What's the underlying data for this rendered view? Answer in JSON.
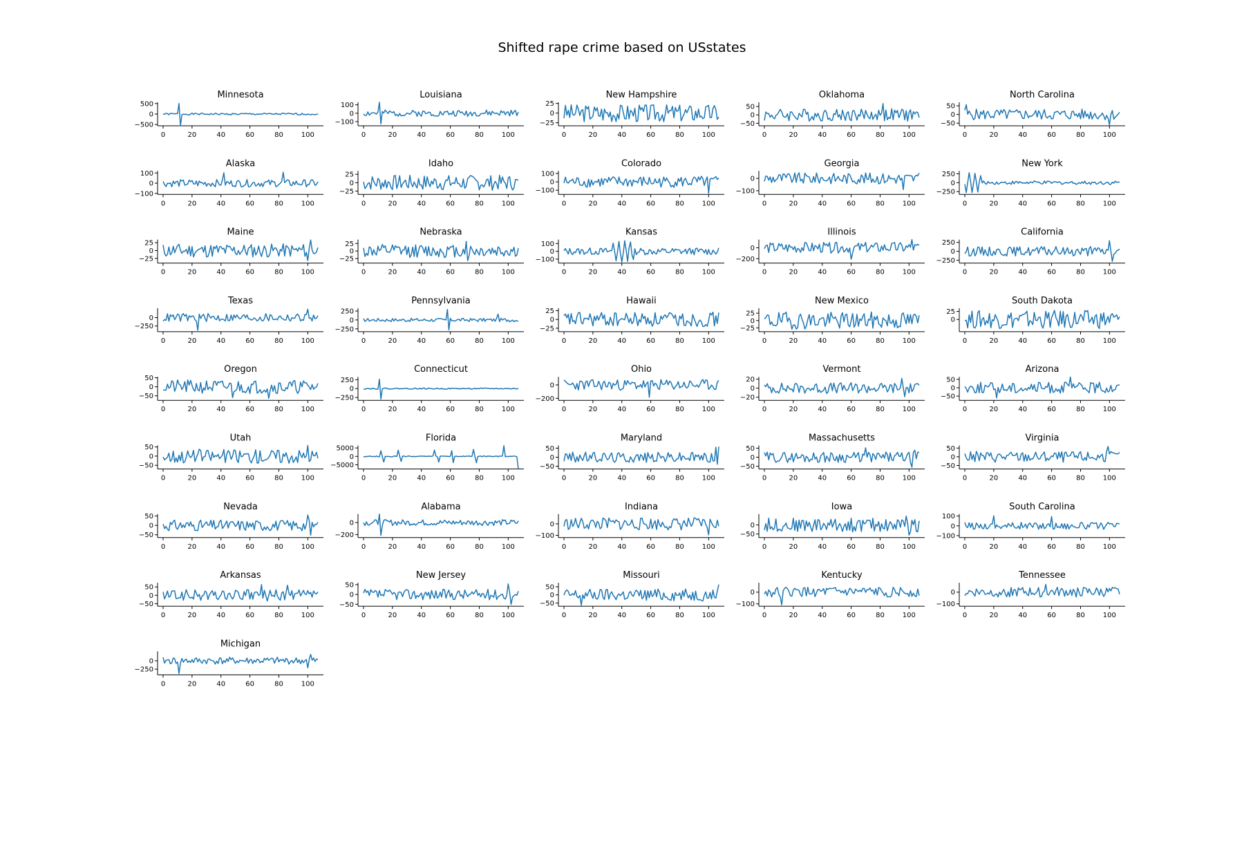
{
  "title": "Shifted rape crime based on USstates",
  "colors": {
    "line": "#1f77b4",
    "axis": "#000000",
    "background": "#ffffff"
  },
  "chart_data": {
    "type": "line",
    "layout": "small-multiples grid, 5 columns x 9 rows",
    "x_points": 108,
    "xlim": [
      0,
      107
    ],
    "xticks": [
      0,
      20,
      40,
      60,
      80,
      100
    ],
    "grid": false,
    "legend": "none",
    "panels": [
      {
        "title": "Minnesota",
        "ylim": [
          -560,
          560
        ],
        "yticks": [
          500,
          0,
          -500
        ],
        "ytick_labels": [
          "500",
          "0",
          "−500"
        ],
        "amp": 0.08,
        "seed": 1,
        "spikes": [
          [
            11,
            0.9
          ],
          [
            12,
            -1.0
          ]
        ]
      },
      {
        "title": "Louisiana",
        "ylim": [
          -150,
          130
        ],
        "yticks": [
          100,
          0,
          -100
        ],
        "ytick_labels": [
          "100",
          "0",
          "−100"
        ],
        "amp": 0.25,
        "seed": 2,
        "spikes": [
          [
            11,
            0.9
          ],
          [
            12,
            -0.85
          ]
        ]
      },
      {
        "title": "New Hampshire",
        "ylim": [
          -33,
          28
        ],
        "yticks": [
          25,
          0,
          -25
        ],
        "ytick_labels": [
          "25",
          "0",
          "−25"
        ],
        "amp": 0.7,
        "seed": 3,
        "spikes": []
      },
      {
        "title": "Oklahoma",
        "ylim": [
          -65,
          75
        ],
        "yticks": [
          50,
          0,
          -50
        ],
        "ytick_labels": [
          "50",
          "0",
          "−50"
        ],
        "amp": 0.5,
        "seed": 4,
        "spikes": [
          [
            82,
            0.9
          ]
        ]
      },
      {
        "title": "North Carolina",
        "ylim": [
          -65,
          70
        ],
        "yticks": [
          50,
          0,
          -50
        ],
        "ytick_labels": [
          "50",
          "0",
          "−50"
        ],
        "amp": 0.45,
        "seed": 5,
        "spikes": [
          [
            1,
            0.8
          ],
          [
            100,
            -0.85
          ]
        ]
      },
      {
        "title": "Alaska",
        "ylim": [
          -110,
          120
        ],
        "yticks": [
          100,
          0,
          -100
        ],
        "ytick_labels": [
          "100",
          "0",
          "−100"
        ],
        "amp": 0.3,
        "seed": 6,
        "spikes": [
          [
            42,
            0.85
          ],
          [
            83,
            0.9
          ]
        ]
      },
      {
        "title": "Idaho",
        "ylim": [
          -35,
          35
        ],
        "yticks": [
          25,
          0,
          -25
        ],
        "ytick_labels": [
          "25",
          "0",
          "−25"
        ],
        "amp": 0.65,
        "seed": 7,
        "spikes": []
      },
      {
        "title": "Colorado",
        "ylim": [
          -150,
          130
        ],
        "yticks": [
          100,
          0,
          -100
        ],
        "ytick_labels": [
          "100",
          "0",
          "−100"
        ],
        "amp": 0.45,
        "seed": 8,
        "spikes": [
          [
            100,
            -0.9
          ]
        ]
      },
      {
        "title": "Georgia",
        "ylim": [
          -130,
          60
        ],
        "yticks": [
          0,
          -100
        ],
        "ytick_labels": [
          "0",
          "−100"
        ],
        "amp": 0.35,
        "seed": 9,
        "spikes": [
          [
            96,
            -0.7
          ]
        ]
      },
      {
        "title": "New York",
        "ylim": [
          -330,
          330
        ],
        "yticks": [
          250,
          0,
          -250
        ],
        "ytick_labels": [
          "250",
          "0",
          "−250"
        ],
        "amp": 0.15,
        "seed": 10,
        "spikes": [
          [
            1,
            -0.85
          ],
          [
            3,
            0.85
          ],
          [
            5,
            -0.85
          ],
          [
            7,
            0.8
          ],
          [
            9,
            -0.8
          ],
          [
            11,
            0.6
          ]
        ]
      },
      {
        "title": "Maine",
        "ylim": [
          -40,
          35
        ],
        "yticks": [
          25,
          0,
          -25
        ],
        "ytick_labels": [
          "25",
          "0",
          "−25"
        ],
        "amp": 0.55,
        "seed": 11,
        "spikes": [
          [
            100,
            -0.8
          ],
          [
            102,
            0.85
          ]
        ]
      },
      {
        "title": "Nebraska",
        "ylim": [
          -40,
          38
        ],
        "yticks": [
          25,
          0,
          -25
        ],
        "ytick_labels": [
          "25",
          "0",
          "−25"
        ],
        "amp": 0.55,
        "seed": 12,
        "spikes": [
          [
            71,
            0.8
          ],
          [
            72,
            -0.8
          ]
        ]
      },
      {
        "title": "Kansas",
        "ylim": [
          -150,
          150
        ],
        "yticks": [
          100,
          0,
          -100
        ],
        "ytick_labels": [
          "100",
          "0",
          "−100"
        ],
        "amp": 0.3,
        "seed": 13,
        "spikes": [
          [
            34,
            0.7
          ],
          [
            36,
            -0.8
          ],
          [
            38,
            0.85
          ],
          [
            40,
            -0.9
          ],
          [
            42,
            0.9
          ],
          [
            44,
            -0.85
          ],
          [
            46,
            0.8
          ],
          [
            48,
            -0.7
          ]
        ]
      },
      {
        "title": "Illinois",
        "ylim": [
          -280,
          150
        ],
        "yticks": [
          0,
          -200
        ],
        "ytick_labels": [
          "0",
          "−200"
        ],
        "amp": 0.35,
        "seed": 14,
        "spikes": [
          [
            60,
            -0.75
          ],
          [
            102,
            0.8
          ]
        ]
      },
      {
        "title": "California",
        "ylim": [
          -330,
          330
        ],
        "yticks": [
          250,
          0,
          -250
        ],
        "ytick_labels": [
          "250",
          "0",
          "−250"
        ],
        "amp": 0.4,
        "seed": 15,
        "spikes": [
          [
            100,
            0.9
          ],
          [
            102,
            -0.85
          ]
        ]
      },
      {
        "title": "Texas",
        "ylim": [
          -420,
          280
        ],
        "yticks": [
          0,
          -250
        ],
        "ytick_labels": [
          "0",
          "−250"
        ],
        "amp": 0.3,
        "seed": 16,
        "spikes": [
          [
            24,
            -0.9
          ],
          [
            100,
            0.6
          ]
        ]
      },
      {
        "title": "Pennsylvania",
        "ylim": [
          -330,
          330
        ],
        "yticks": [
          250,
          0,
          -250
        ],
        "ytick_labels": [
          "250",
          "0",
          "−250"
        ],
        "amp": 0.15,
        "seed": 17,
        "spikes": [
          [
            58,
            0.9
          ],
          [
            59,
            -0.85
          ],
          [
            93,
            0.5
          ]
        ]
      },
      {
        "title": "Hawaii",
        "ylim": [
          -35,
          32
        ],
        "yticks": [
          25,
          0,
          -25
        ],
        "ytick_labels": [
          "25",
          "0",
          "−25"
        ],
        "amp": 0.6,
        "seed": 18,
        "spikes": []
      },
      {
        "title": "New Mexico",
        "ylim": [
          -38,
          42
        ],
        "yticks": [
          25,
          0,
          -25
        ],
        "ytick_labels": [
          "25",
          "0",
          "−25"
        ],
        "amp": 0.7,
        "seed": 19,
        "spikes": []
      },
      {
        "title": "South Dakota",
        "ylim": [
          -38,
          35
        ],
        "yticks": [
          25,
          0
        ],
        "ytick_labels": [
          "25",
          "0"
        ],
        "amp": 0.75,
        "seed": 20,
        "spikes": []
      },
      {
        "title": "Oregon",
        "ylim": [
          -75,
          55
        ],
        "yticks": [
          50,
          0,
          -50
        ],
        "ytick_labels": [
          "50",
          "0",
          "−50"
        ],
        "amp": 0.5,
        "seed": 21,
        "spikes": [
          [
            48,
            -0.8
          ],
          [
            73,
            -0.85
          ]
        ]
      },
      {
        "title": "Connecticut",
        "ylim": [
          -330,
          330
        ],
        "yticks": [
          250,
          0,
          -250
        ],
        "ytick_labels": [
          "250",
          "0",
          "−250"
        ],
        "amp": 0.05,
        "seed": 22,
        "spikes": [
          [
            11,
            0.8
          ],
          [
            12,
            -0.9
          ]
        ]
      },
      {
        "title": "Ohio",
        "ylim": [
          -230,
          120
        ],
        "yticks": [
          0,
          -200
        ],
        "ytick_labels": [
          "0",
          "−200"
        ],
        "amp": 0.35,
        "seed": 23,
        "spikes": [
          [
            59,
            -0.8
          ]
        ]
      },
      {
        "title": "Vermont",
        "ylim": [
          -27,
          25
        ],
        "yticks": [
          20,
          0,
          -20
        ],
        "ytick_labels": [
          "20",
          "0",
          "−20"
        ],
        "amp": 0.45,
        "seed": 24,
        "spikes": [
          [
            95,
            0.8
          ],
          [
            97,
            -0.7
          ]
        ]
      },
      {
        "title": "Arizona",
        "ylim": [
          -75,
          65
        ],
        "yticks": [
          50,
          0,
          -50
        ],
        "ytick_labels": [
          "50",
          "0",
          "−50"
        ],
        "amp": 0.45,
        "seed": 25,
        "spikes": [
          [
            22,
            -0.8
          ],
          [
            73,
            0.85
          ]
        ]
      },
      {
        "title": "Utah",
        "ylim": [
          -70,
          58
        ],
        "yticks": [
          50,
          0,
          -50
        ],
        "ytick_labels": [
          "50",
          "0",
          "−50"
        ],
        "amp": 0.55,
        "seed": 26,
        "spikes": [
          [
            100,
            0.85
          ]
        ]
      },
      {
        "title": "Florida",
        "ylim": [
          -7500,
          6500
        ],
        "yticks": [
          5000,
          0,
          -5000
        ],
        "ytick_labels": [
          "5000",
          "0",
          "−5000"
        ],
        "amp": 0.04,
        "seed": 27,
        "spikes": [
          [
            12,
            0.45
          ],
          [
            14,
            -0.45
          ],
          [
            24,
            0.5
          ],
          [
            26,
            -0.4
          ],
          [
            49,
            0.5
          ],
          [
            52,
            -0.45
          ],
          [
            61,
            0.45
          ],
          [
            62,
            -0.5
          ],
          [
            76,
            0.55
          ],
          [
            78,
            -0.5
          ],
          [
            97,
            0.85
          ],
          [
            107,
            -1.0
          ]
        ]
      },
      {
        "title": "Maryland",
        "ylim": [
          -65,
          65
        ],
        "yticks": [
          50,
          0,
          -50
        ],
        "ytick_labels": [
          "50",
          "0",
          "−50"
        ],
        "amp": 0.45,
        "seed": 28,
        "spikes": [
          [
            105,
            0.85
          ],
          [
            106,
            -0.6
          ],
          [
            107,
            0.9
          ]
        ]
      },
      {
        "title": "Massachusetts",
        "ylim": [
          -65,
          65
        ],
        "yticks": [
          50,
          0,
          -50
        ],
        "ytick_labels": [
          "50",
          "0",
          "−50"
        ],
        "amp": 0.45,
        "seed": 29,
        "spikes": [
          [
            70,
            0.8
          ],
          [
            102,
            -0.85
          ],
          [
            104,
            0.6
          ]
        ]
      },
      {
        "title": "Virginia",
        "ylim": [
          -70,
          65
        ],
        "yticks": [
          50,
          0,
          -50
        ],
        "ytick_labels": [
          "50",
          "0",
          "−50"
        ],
        "amp": 0.45,
        "seed": 30,
        "spikes": [
          [
            99,
            0.85
          ]
        ]
      },
      {
        "title": "Nevada",
        "ylim": [
          -65,
          60
        ],
        "yticks": [
          50,
          0,
          -50
        ],
        "ytick_labels": [
          "50",
          "0",
          "−50"
        ],
        "amp": 0.45,
        "seed": 31,
        "spikes": [
          [
            100,
            0.85
          ],
          [
            102,
            -0.8
          ]
        ]
      },
      {
        "title": "Alabama",
        "ylim": [
          -250,
          140
        ],
        "yticks": [
          0,
          -200
        ],
        "ytick_labels": [
          "0",
          "−200"
        ],
        "amp": 0.2,
        "seed": 32,
        "spikes": [
          [
            11,
            0.7
          ],
          [
            12,
            -0.85
          ]
        ]
      },
      {
        "title": "Indiana",
        "ylim": [
          -120,
          85
        ],
        "yticks": [
          0,
          -100
        ],
        "ytick_labels": [
          "0",
          "−100"
        ],
        "amp": 0.45,
        "seed": 33,
        "spikes": [
          [
            100,
            -0.8
          ]
        ]
      },
      {
        "title": "Iowa",
        "ylim": [
          -70,
          60
        ],
        "yticks": [
          0,
          -50
        ],
        "ytick_labels": [
          "0",
          "−50"
        ],
        "amp": 0.55,
        "seed": 34,
        "spikes": [
          [
            98,
            0.7
          ],
          [
            100,
            -0.8
          ]
        ]
      },
      {
        "title": "South Carolina",
        "ylim": [
          -120,
          120
        ],
        "yticks": [
          100,
          0,
          -100
        ],
        "ytick_labels": [
          "100",
          "0",
          "−100"
        ],
        "amp": 0.3,
        "seed": 35,
        "spikes": [
          [
            20,
            0.85
          ],
          [
            60,
            0.8
          ]
        ]
      },
      {
        "title": "Arkansas",
        "ylim": [
          -65,
          75
        ],
        "yticks": [
          50,
          0,
          -50
        ],
        "ytick_labels": [
          "50",
          "0",
          "−50"
        ],
        "amp": 0.45,
        "seed": 36,
        "spikes": [
          [
            68,
            0.85
          ],
          [
            86,
            0.8
          ]
        ]
      },
      {
        "title": "New Jersey",
        "ylim": [
          -60,
          60
        ],
        "yticks": [
          50,
          0,
          -50
        ],
        "ytick_labels": [
          "50",
          "0",
          "−50"
        ],
        "amp": 0.45,
        "seed": 37,
        "spikes": [
          [
            100,
            0.9
          ],
          [
            102,
            -0.85
          ]
        ]
      },
      {
        "title": "Missouri",
        "ylim": [
          -70,
          75
        ],
        "yticks": [
          50,
          0,
          -50
        ],
        "ytick_labels": [
          "50",
          "0",
          "−50"
        ],
        "amp": 0.5,
        "seed": 38,
        "spikes": [
          [
            12,
            -0.85
          ],
          [
            107,
            0.85
          ]
        ]
      },
      {
        "title": "Kentucky",
        "ylim": [
          -120,
          80
        ],
        "yticks": [
          0,
          -100
        ],
        "ytick_labels": [
          "0",
          "−100"
        ],
        "amp": 0.35,
        "seed": 39,
        "spikes": [
          [
            12,
            -0.9
          ]
        ]
      },
      {
        "title": "Tennessee",
        "ylim": [
          -120,
          80
        ],
        "yticks": [
          0,
          -100
        ],
        "ytick_labels": [
          "0",
          "−100"
        ],
        "amp": 0.35,
        "seed": 40,
        "spikes": [
          [
            56,
            0.55
          ]
        ]
      },
      {
        "title": "Michigan",
        "ylim": [
          -420,
          280
        ],
        "yticks": [
          0,
          -250
        ],
        "ytick_labels": [
          "0",
          "−250"
        ],
        "amp": 0.25,
        "seed": 41,
        "spikes": [
          [
            11,
            -0.9
          ],
          [
            100,
            -0.5
          ],
          [
            102,
            0.45
          ]
        ]
      }
    ]
  }
}
